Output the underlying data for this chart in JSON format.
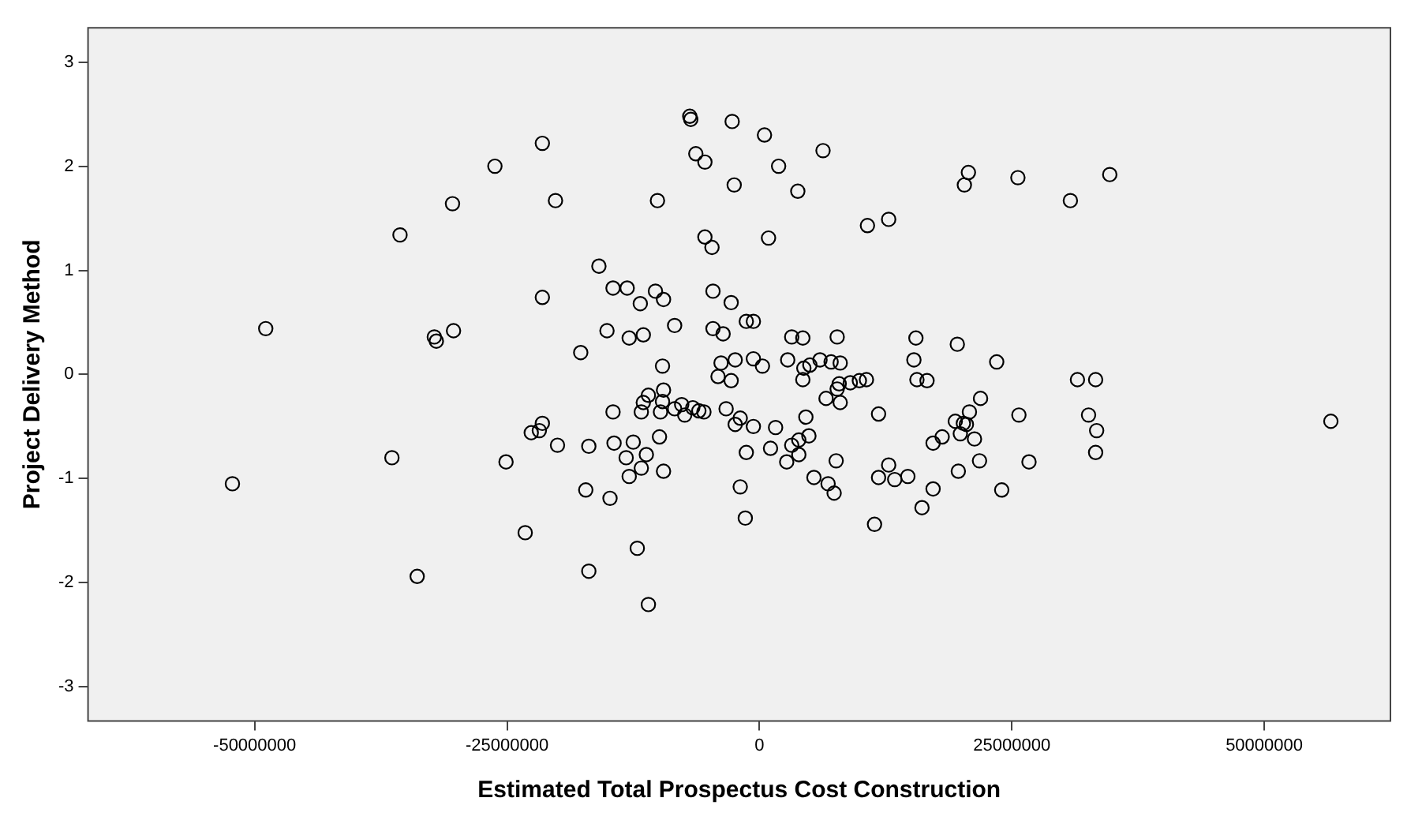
{
  "chart_data": {
    "type": "scatter",
    "xlabel": "Estimated Total Prospectus Cost Construction",
    "ylabel": "Project Delivery Method",
    "xlim": [
      -66500000,
      62500000
    ],
    "xticks": [
      -50000000,
      -25000000,
      0,
      25000000,
      50000000
    ],
    "ylim": [
      -3.33,
      3.33
    ],
    "yticks": [
      -3,
      -2,
      -1,
      0,
      1,
      2,
      3
    ],
    "grid": false,
    "legend": false,
    "marker": "circle",
    "series": [
      {
        "color": "#000000",
        "x": [
          -48900000,
          -52200000,
          -26200000,
          -21500000,
          -20200000,
          -30400000,
          -35600000,
          -15900000,
          -21500000,
          -32200000,
          -32000000,
          -30300000,
          -10100000,
          -6900000,
          -6800000,
          -2700000,
          500000,
          6300000,
          -6300000,
          -5400000,
          1900000,
          -2500000,
          3800000,
          20700000,
          20300000,
          10700000,
          12800000,
          -5400000,
          -4700000,
          900000,
          -14500000,
          -13100000,
          -11800000,
          -10300000,
          -9500000,
          -4600000,
          -2800000,
          -1300000,
          -600000,
          -15100000,
          -12900000,
          -11500000,
          -8400000,
          -4600000,
          -3600000,
          -17700000,
          3200000,
          4300000,
          7700000,
          15500000,
          19600000,
          15300000,
          -9600000,
          -3800000,
          -2400000,
          -600000,
          300000,
          -4100000,
          -2800000,
          2800000,
          4400000,
          5000000,
          6000000,
          7100000,
          8000000,
          4300000,
          7900000,
          9000000,
          9900000,
          10600000,
          15600000,
          16600000,
          25600000,
          30800000,
          34700000,
          23500000,
          31500000,
          33300000,
          -36400000,
          -25100000,
          -23200000,
          -33900000,
          -22600000,
          -21500000,
          -21800000,
          -20000000,
          -16900000,
          -17200000,
          -14800000,
          -16900000,
          -12100000,
          -11000000,
          -14500000,
          -14400000,
          -12500000,
          -13200000,
          -11200000,
          -11700000,
          -12900000,
          -9500000,
          -9900000,
          -11700000,
          -11000000,
          -11500000,
          -9500000,
          -9600000,
          -9800000,
          -8400000,
          -7700000,
          -7400000,
          -6600000,
          -6000000,
          -5500000,
          -3300000,
          -1900000,
          -2400000,
          -600000,
          -1300000,
          -1900000,
          -1400000,
          1600000,
          1100000,
          2700000,
          3200000,
          3900000,
          4900000,
          3900000,
          4600000,
          5400000,
          6800000,
          7400000,
          7600000,
          6600000,
          8000000,
          7700000,
          11800000,
          11400000,
          11800000,
          12800000,
          13400000,
          14700000,
          16100000,
          17200000,
          17200000,
          18100000,
          19700000,
          19400000,
          20200000,
          20500000,
          20800000,
          19900000,
          21300000,
          21900000,
          21800000,
          25700000,
          26700000,
          24000000,
          32600000,
          33400000,
          33300000,
          56600000
        ],
        "values": [
          0.44,
          -1.05,
          2.0,
          2.22,
          1.67,
          1.64,
          1.34,
          1.04,
          0.74,
          0.36,
          0.32,
          0.42,
          1.67,
          2.48,
          2.45,
          2.43,
          2.3,
          2.15,
          2.12,
          2.04,
          2.0,
          1.82,
          1.76,
          1.94,
          1.82,
          1.43,
          1.49,
          1.32,
          1.22,
          1.31,
          0.83,
          0.83,
          0.68,
          0.8,
          0.72,
          0.8,
          0.69,
          0.51,
          0.51,
          0.42,
          0.35,
          0.38,
          0.47,
          0.44,
          0.39,
          0.21,
          0.36,
          0.35,
          0.36,
          0.35,
          0.29,
          0.14,
          0.08,
          0.11,
          0.14,
          0.15,
          0.08,
          -0.02,
          -0.06,
          0.14,
          0.06,
          0.09,
          0.14,
          0.12,
          0.11,
          -0.05,
          -0.09,
          -0.08,
          -0.06,
          -0.05,
          -0.05,
          -0.06,
          1.89,
          1.67,
          1.92,
          0.12,
          -0.05,
          -0.05,
          -0.8,
          -0.84,
          -1.52,
          -1.94,
          -0.56,
          -0.47,
          -0.54,
          -0.68,
          -0.69,
          -1.11,
          -1.19,
          -1.89,
          -1.67,
          -2.21,
          -0.36,
          -0.66,
          -0.65,
          -0.8,
          -0.77,
          -0.9,
          -0.98,
          -0.93,
          -0.6,
          -0.36,
          -0.2,
          -0.27,
          -0.15,
          -0.26,
          -0.36,
          -0.33,
          -0.29,
          -0.39,
          -0.32,
          -0.35,
          -0.36,
          -0.33,
          -0.42,
          -0.48,
          -0.5,
          -0.75,
          -1.08,
          -1.38,
          -0.51,
          -0.71,
          -0.84,
          -0.68,
          -0.63,
          -0.59,
          -0.77,
          -0.41,
          -0.99,
          -1.05,
          -1.14,
          -0.83,
          -0.23,
          -0.27,
          -0.14,
          -0.38,
          -1.44,
          -0.99,
          -0.87,
          -1.01,
          -0.98,
          -1.28,
          -1.1,
          -0.66,
          -0.6,
          -0.93,
          -0.45,
          -0.47,
          -0.48,
          -0.36,
          -0.57,
          -0.62,
          -0.23,
          -0.83,
          -0.39,
          -0.84,
          -1.11,
          -0.39,
          -0.54,
          -0.75,
          -0.45
        ]
      }
    ]
  }
}
